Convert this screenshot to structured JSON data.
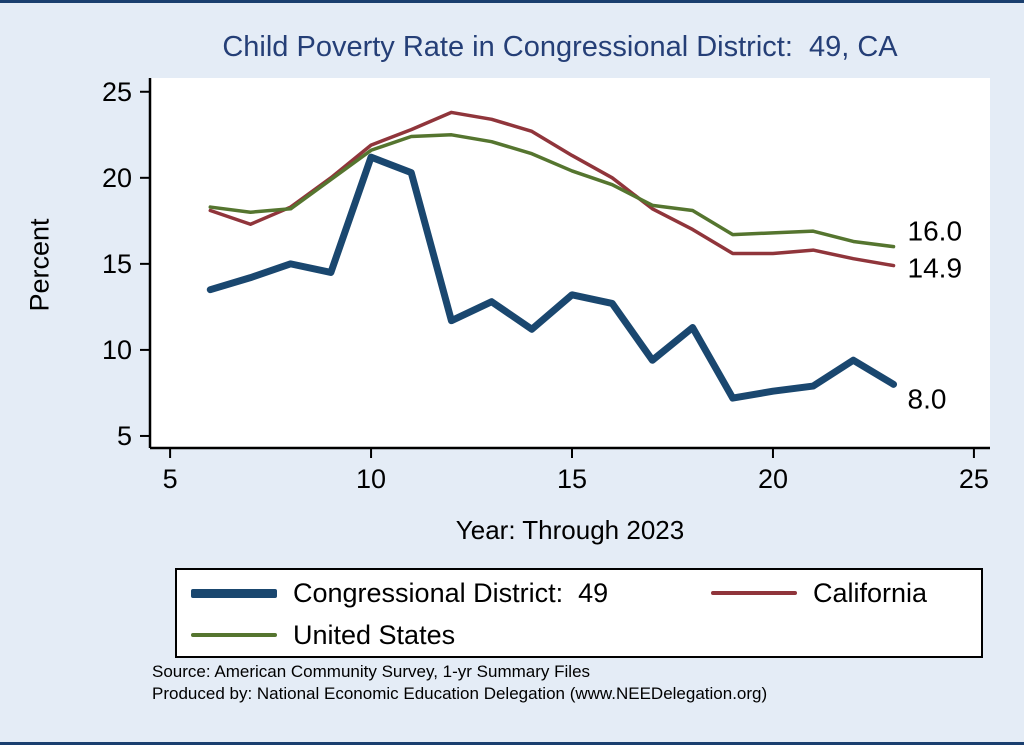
{
  "title": "Child Poverty Rate in Congressional District:  49, CA",
  "chart_data": {
    "type": "line",
    "title": "Child Poverty Rate in Congressional District:  49, CA",
    "xlabel": "Year: Through 2023",
    "ylabel": "Percent",
    "x": [
      6,
      7,
      8,
      9,
      10,
      11,
      12,
      13,
      14,
      15,
      16,
      17,
      18,
      19,
      20,
      21,
      22,
      23
    ],
    "series": [
      {
        "name": "Congressional District:  49",
        "color": "#1a476f",
        "width": 7,
        "values": [
          13.5,
          14.2,
          15.0,
          14.5,
          21.2,
          20.3,
          11.7,
          12.8,
          11.2,
          13.2,
          12.7,
          9.4,
          11.3,
          7.2,
          7.6,
          7.9,
          9.4,
          8.0
        ]
      },
      {
        "name": "California",
        "color": "#90353b",
        "width": 3.5,
        "values": [
          18.1,
          17.3,
          18.3,
          20.0,
          21.9,
          22.8,
          23.8,
          23.4,
          22.7,
          21.3,
          20.0,
          18.2,
          17.0,
          15.6,
          15.6,
          15.8,
          15.3,
          14.9
        ]
      },
      {
        "name": "United States",
        "color": "#55752f",
        "width": 3.5,
        "values": [
          18.3,
          18.0,
          18.2,
          19.9,
          21.6,
          22.4,
          22.5,
          22.1,
          21.4,
          20.4,
          19.6,
          18.4,
          18.1,
          16.7,
          16.8,
          16.9,
          16.3,
          16.0
        ]
      }
    ],
    "xticks": [
      5,
      10,
      15,
      20,
      25
    ],
    "yticks": [
      5,
      10,
      15,
      20,
      25
    ],
    "xlim": [
      4.5,
      25.4
    ],
    "ylim": [
      4.3,
      25.8
    ],
    "grid": false,
    "legend_position": "bottom",
    "end_labels": [
      {
        "text": "16.0",
        "series_index": 2,
        "dy": -16
      },
      {
        "text": "14.9",
        "series_index": 1,
        "dy": 2
      },
      {
        "text": "8.0",
        "series_index": 0,
        "dy": 14
      }
    ]
  },
  "footer": {
    "source": "Source: American Community Survey, 1-yr Summary Files",
    "produced_by": "Produced by: National Economic Education Delegation (www.NEEDelegation.org)"
  },
  "colors": {
    "background": "#e4ecf6",
    "plot_background": "#ffffff",
    "title": "#253f77",
    "axis": "#000000",
    "frame_border": "#1a3f6f"
  }
}
